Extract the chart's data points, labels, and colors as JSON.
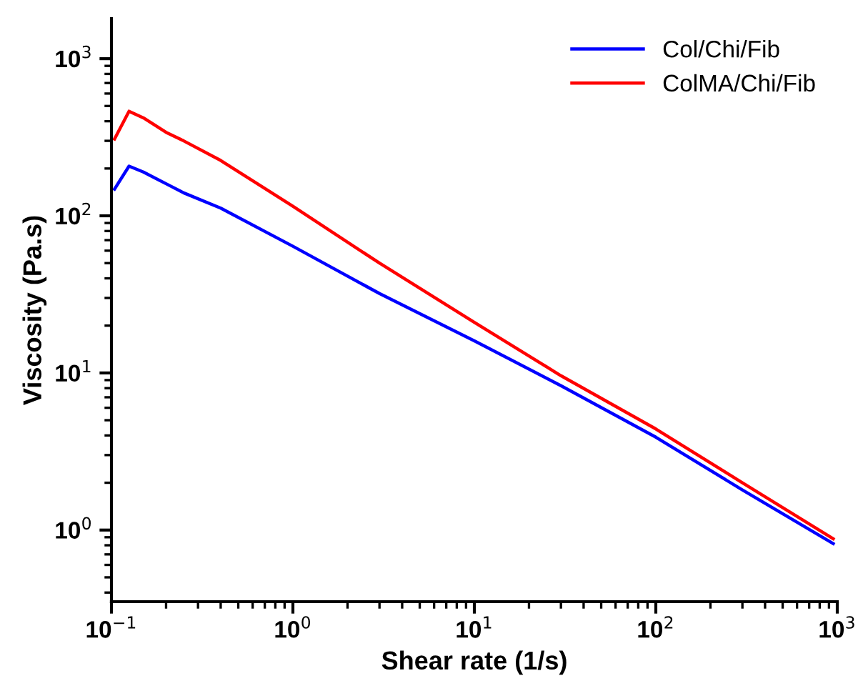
{
  "chart_data": {
    "type": "line",
    "xlabel": "Shear rate (1/s)",
    "ylabel": "Viscosity (Pa.s)",
    "log": "xy",
    "grid": false,
    "legend": "top right",
    "marker": "none",
    "line_style": "solid",
    "xlim": [
      0.1,
      1000
    ],
    "ylim": [
      0.35,
      1800
    ],
    "xticks": [
      {
        "value": 0.1,
        "label": "10$^{−1}$"
      },
      {
        "value": 1,
        "label": "10$^{0}$"
      },
      {
        "value": 10,
        "label": "10$^{1}$"
      },
      {
        "value": 100,
        "label": "10$^{2}$"
      },
      {
        "value": 1000,
        "label": "10$^{3}$"
      }
    ],
    "yticks": [
      {
        "value": 1,
        "label": "10$^{0}$"
      },
      {
        "value": 10,
        "label": "10$^{1}$"
      },
      {
        "value": 100,
        "label": "10$^{2}$"
      },
      {
        "value": 1000,
        "label": "10$^{3}$"
      }
    ],
    "x": [
      0.104,
      0.125,
      0.15,
      0.2,
      0.25,
      0.4,
      1,
      3,
      10,
      30,
      100,
      300,
      950
    ],
    "series": [
      {
        "name": "Col/Chi/Fib",
        "color": "#0000ff",
        "values": [
          148,
          207,
          190,
          160,
          140,
          112,
          64,
          32,
          16,
          8.3,
          3.9,
          1.8,
          0.82
        ]
      },
      {
        "name": "ColMA/Chi/Fib",
        "color": "#ff0000",
        "values": [
          308,
          463,
          420,
          340,
          300,
          225,
          115,
          50,
          21,
          9.6,
          4.4,
          2.0,
          0.88
        ]
      }
    ]
  }
}
